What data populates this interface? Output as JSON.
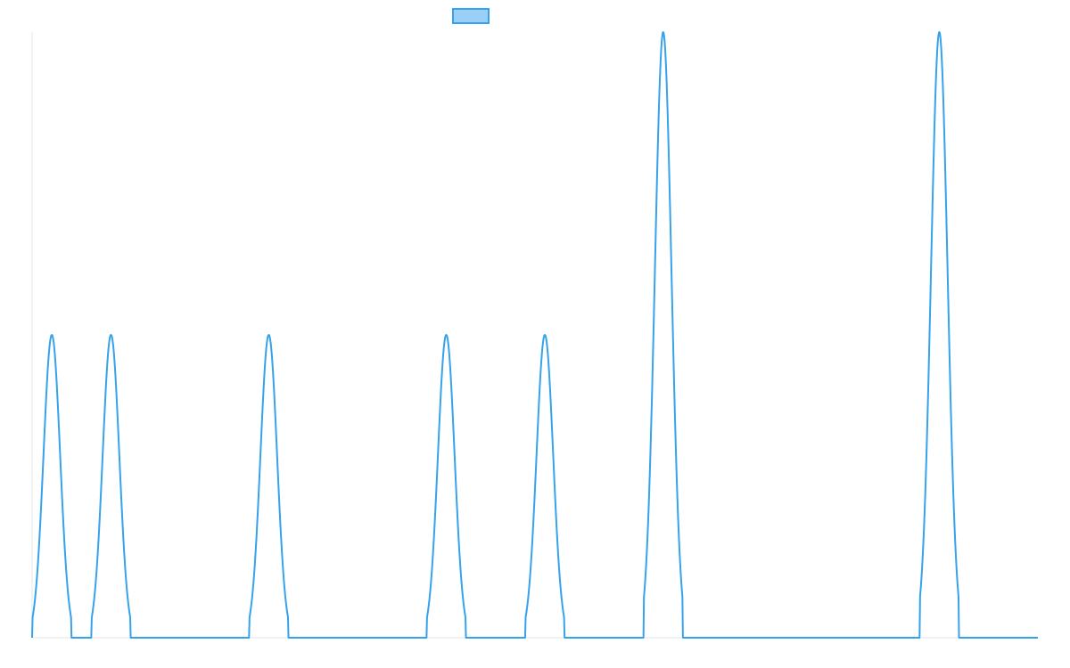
{
  "chart_data": {
    "type": "line",
    "title": "",
    "xlabel": "",
    "ylabel": "",
    "xlim": [
      0,
      1020
    ],
    "ylim": [
      0,
      1
    ],
    "grid": false,
    "legend": {
      "placement": "top-center",
      "entries": [
        {
          "label": "",
          "color": "#36a2eb",
          "fill": "#9ad0f5"
        }
      ]
    },
    "series": [
      {
        "color": "#36a2eb",
        "peak_shape": "bell",
        "peak_half_width": 20,
        "peaks": [
          {
            "x": 20,
            "y": 0.5
          },
          {
            "x": 80,
            "y": 0.5
          },
          {
            "x": 240,
            "y": 0.5
          },
          {
            "x": 420,
            "y": 0.5
          },
          {
            "x": 520,
            "y": 0.5
          },
          {
            "x": 640,
            "y": 1.0
          },
          {
            "x": 920,
            "y": 1.0
          }
        ]
      }
    ]
  }
}
